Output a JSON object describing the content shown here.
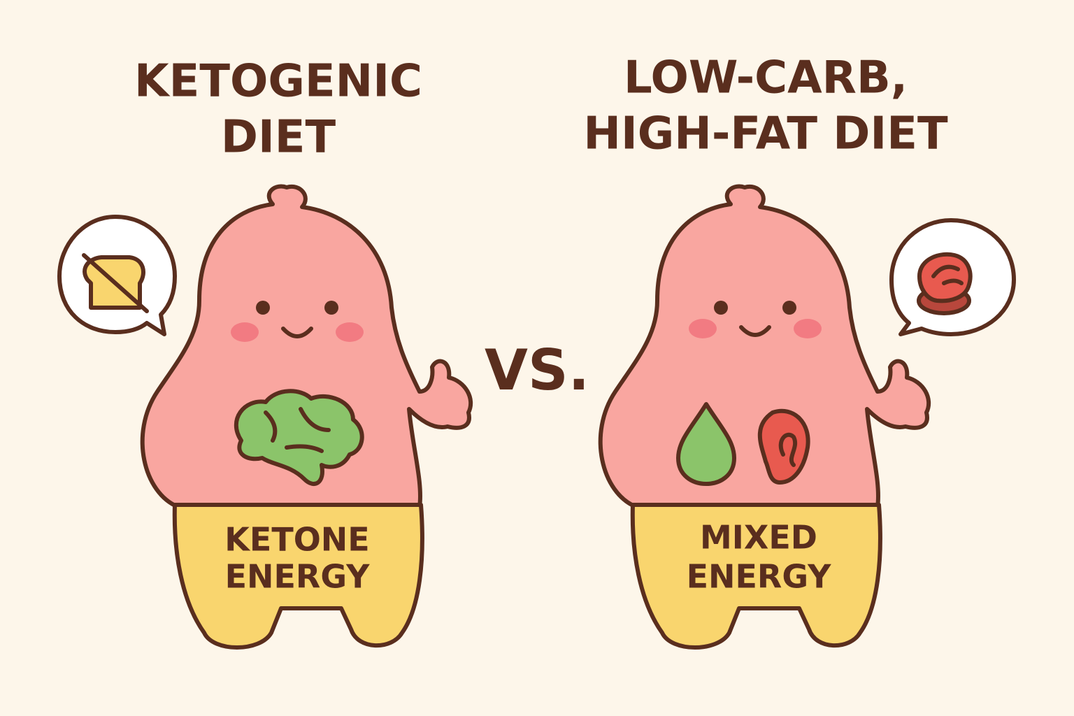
{
  "left": {
    "title": [
      "KETOGENIC",
      "DIET"
    ],
    "label": [
      "KETONE",
      "ENERGY"
    ]
  },
  "versus": "VS.",
  "right": {
    "title": [
      "LOW-CARB,",
      "HIGH-FAT DIET"
    ],
    "label": [
      "MIXED",
      "ENERGY"
    ]
  }
}
